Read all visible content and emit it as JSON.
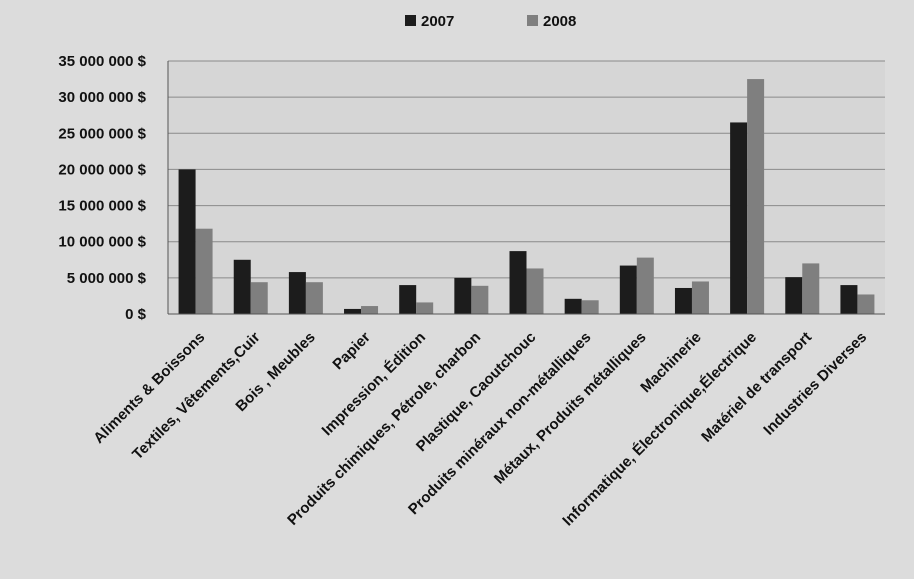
{
  "chart_data": {
    "type": "bar",
    "categories": [
      "Aliments & Boissons",
      "Textiles, Vêtements,Cuir",
      "Bois , Meubles",
      "Papier",
      "Impression, Édition",
      "Produits chimiques, Pétrole, charbon",
      "Plastique, Caoutchouc",
      "Produits minéraux non-métalliques",
      "Métaux, Produits métalliques",
      "Machinerie",
      "Informatique, Électronique,Électrique",
      "Matériel de transport",
      "Industries Diverses"
    ],
    "series": [
      {
        "name": "2007",
        "color": "#1c1c1c",
        "values": [
          20000000,
          7500000,
          5800000,
          700000,
          4000000,
          5000000,
          8700000,
          2100000,
          6700000,
          3600000,
          26500000,
          5100000,
          4000000
        ]
      },
      {
        "name": "2008",
        "color": "#7f7f7f",
        "values": [
          11800000,
          4400000,
          4400000,
          1100000,
          1600000,
          3900000,
          6300000,
          1900000,
          7800000,
          4500000,
          32500000,
          7000000,
          2700000
        ]
      }
    ],
    "ylim": [
      0,
      35000000
    ],
    "yticks": [
      0,
      5000000,
      10000000,
      15000000,
      20000000,
      25000000,
      30000000,
      35000000
    ],
    "ytick_labels": [
      "0 $",
      "5 000 000 $",
      "10 000 000 $",
      "15 000 000 $",
      "20 000 000 $",
      "25 000 000 $",
      "30 000 000 $",
      "35 000 000 $"
    ],
    "legend_position": "top-center",
    "grid": true
  }
}
